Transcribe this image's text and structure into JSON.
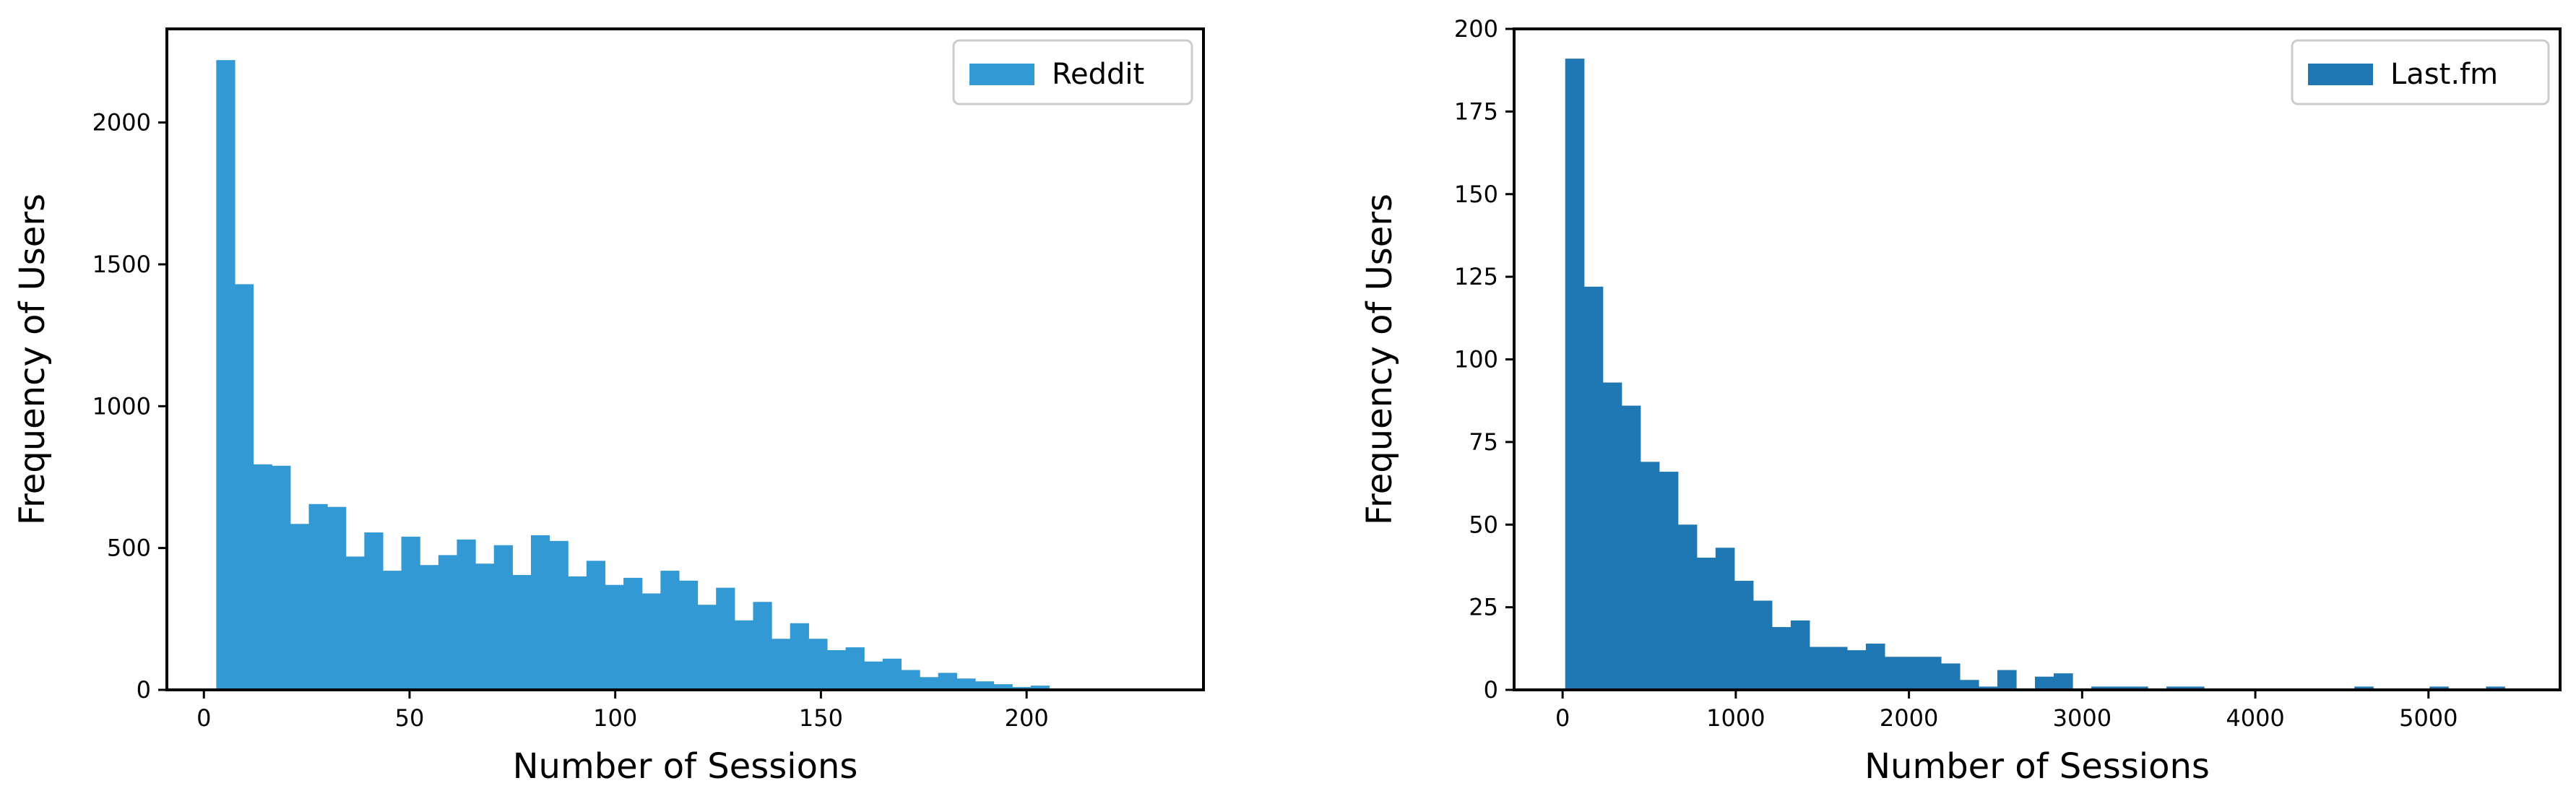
{
  "chart_data": [
    {
      "type": "bar",
      "title": "",
      "xlabel": "Number of Sessions",
      "ylabel": "Frequency of Users",
      "xlim": [
        -9,
        243
      ],
      "ylim": [
        0,
        2330
      ],
      "xticks": [
        0,
        50,
        100,
        150,
        200
      ],
      "yticks": [
        0,
        500,
        1000,
        1500,
        2000
      ],
      "legend": {
        "position": "top-right",
        "entries": [
          {
            "label": "Reddit",
            "color": "#3399d4"
          }
        ]
      },
      "grid": false,
      "series": [
        {
          "name": "Reddit",
          "color": "#3399d4",
          "bin_start": 3,
          "bin_width": 4.5,
          "values": [
            2220,
            1430,
            795,
            790,
            585,
            655,
            645,
            470,
            555,
            420,
            540,
            440,
            475,
            530,
            445,
            510,
            405,
            545,
            525,
            400,
            455,
            370,
            395,
            340,
            420,
            385,
            300,
            360,
            245,
            310,
            180,
            235,
            180,
            140,
            150,
            100,
            110,
            70,
            45,
            60,
            40,
            30,
            20,
            10,
            15,
            5,
            3,
            2,
            1,
            1
          ]
        }
      ]
    },
    {
      "type": "bar",
      "title": "",
      "xlabel": "Number of Sessions",
      "ylabel": "Frequency of Users",
      "xlim": [
        -280,
        5760
      ],
      "ylim": [
        0,
        200
      ],
      "xticks": [
        0,
        1000,
        2000,
        3000,
        4000,
        5000
      ],
      "yticks": [
        0,
        25,
        50,
        75,
        100,
        125,
        150,
        175,
        200
      ],
      "legend": {
        "position": "top-right",
        "entries": [
          {
            "label": "Last.fm",
            "color": "#1f77b4"
          }
        ]
      },
      "grid": false,
      "series": [
        {
          "name": "Last.fm",
          "color": "#1f77b4",
          "bin_start": 15,
          "bin_width": 108.5,
          "values": [
            191,
            122,
            93,
            86,
            69,
            66,
            50,
            40,
            43,
            33,
            27,
            19,
            21,
            13,
            13,
            12,
            14,
            10,
            10,
            10,
            8,
            3,
            1,
            6,
            0,
            4,
            5,
            0,
            1,
            1,
            1,
            0,
            1,
            1,
            0,
            0,
            0,
            0,
            0,
            0,
            0,
            0,
            1,
            0,
            0,
            0,
            1,
            0,
            0,
            1
          ]
        }
      ]
    }
  ]
}
